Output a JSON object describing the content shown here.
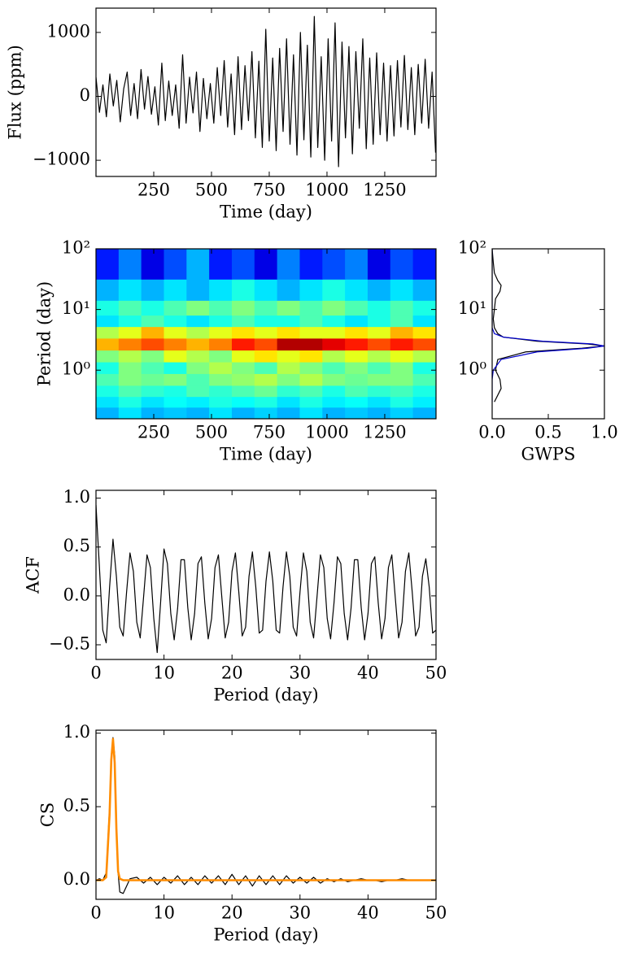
{
  "chart_data": [
    {
      "type": "line",
      "xlabel": "Time (day)",
      "ylabel": "Flux (ppm)",
      "xlim": [
        0,
        1472
      ],
      "xticks": [
        250,
        500,
        750,
        1000,
        1250
      ],
      "ylim": [
        -1253,
        1380
      ],
      "yticks": [
        {
          "value": -1000,
          "label": "−1000"
        },
        0,
        1000
      ],
      "x": [
        0,
        15,
        30,
        45,
        60,
        75,
        90,
        105,
        120,
        135,
        150,
        165,
        180,
        195,
        210,
        225,
        240,
        255,
        270,
        285,
        300,
        315,
        330,
        345,
        360,
        375,
        390,
        405,
        420,
        435,
        450,
        465,
        480,
        495,
        510,
        525,
        540,
        555,
        570,
        585,
        600,
        615,
        630,
        645,
        660,
        675,
        690,
        705,
        720,
        735,
        750,
        765,
        780,
        795,
        810,
        825,
        840,
        855,
        870,
        885,
        900,
        915,
        930,
        945,
        960,
        975,
        990,
        1005,
        1020,
        1035,
        1050,
        1065,
        1080,
        1095,
        1110,
        1125,
        1140,
        1155,
        1170,
        1185,
        1200,
        1215,
        1230,
        1245,
        1260,
        1275,
        1290,
        1305,
        1320,
        1335,
        1350,
        1365,
        1380,
        1395,
        1410,
        1425,
        1440,
        1455,
        1470
      ],
      "series": [
        {
          "color": "#000000",
          "linewidth": 1.2,
          "values": [
            300,
            -250,
            180,
            -320,
            350,
            -150,
            250,
            -400,
            120,
            380,
            -300,
            200,
            -350,
            420,
            -200,
            310,
            -280,
            150,
            -450,
            520,
            -380,
            240,
            -300,
            180,
            -500,
            650,
            -420,
            300,
            -260,
            380,
            -550,
            280,
            -350,
            200,
            -420,
            450,
            -300,
            560,
            -480,
            350,
            -600,
            620,
            -520,
            480,
            -380,
            700,
            -650,
            550,
            -800,
            1050,
            -700,
            600,
            -850,
            750,
            -550,
            900,
            -750,
            650,
            -920,
            1000,
            -680,
            800,
            -950,
            1250,
            -800,
            620,
            -1000,
            900,
            -700,
            1150,
            -1100,
            850,
            -650,
            780,
            -900,
            700,
            -500,
            900,
            -820,
            600,
            -750,
            680,
            -600,
            520,
            -700,
            480,
            -620,
            560,
            -480,
            640,
            -520,
            450,
            -600,
            500,
            -420,
            580,
            -500,
            380,
            -880
          ]
        }
      ]
    },
    {
      "type": "heatmap",
      "xlabel": "Time (day)",
      "ylabel": "Period (day)",
      "colormap": "jet",
      "ylog": true,
      "xlim": [
        0,
        1472
      ],
      "xticks": [
        250,
        500,
        750,
        1000,
        1250
      ],
      "ylim": [
        0.158,
        100
      ],
      "yticks": [
        {
          "value": 1,
          "label": "10⁰"
        },
        {
          "value": 10,
          "label": "10¹"
        },
        {
          "value": 100,
          "label": "10²"
        }
      ],
      "x": [
        49,
        147,
        245,
        343,
        441,
        539,
        637,
        735,
        833,
        931,
        1029,
        1127,
        1225,
        1323,
        1421
      ],
      "y": [
        0.2,
        0.3,
        0.45,
        0.7,
        1.1,
        1.7,
        2.7,
        4.2,
        6.5,
        10,
        20,
        50
      ],
      "z": [
        [
          0.3,
          0.35,
          0.3,
          0.32,
          0.3,
          0.35,
          0.3,
          0.33,
          0.3,
          0.35,
          0.3,
          0.32,
          0.3,
          0.33,
          0.3
        ],
        [
          0.35,
          0.4,
          0.35,
          0.38,
          0.36,
          0.4,
          0.38,
          0.4,
          0.35,
          0.4,
          0.36,
          0.38,
          0.35,
          0.4,
          0.36
        ],
        [
          0.4,
          0.45,
          0.42,
          0.4,
          0.45,
          0.42,
          0.45,
          0.48,
          0.42,
          0.45,
          0.4,
          0.45,
          0.42,
          0.44,
          0.4
        ],
        [
          0.45,
          0.5,
          0.48,
          0.5,
          0.45,
          0.5,
          0.52,
          0.55,
          0.5,
          0.55,
          0.5,
          0.48,
          0.5,
          0.5,
          0.45
        ],
        [
          0.4,
          0.5,
          0.45,
          0.4,
          0.5,
          0.55,
          0.5,
          0.45,
          0.55,
          0.5,
          0.45,
          0.5,
          0.45,
          0.5,
          0.4
        ],
        [
          0.5,
          0.55,
          0.5,
          0.6,
          0.55,
          0.5,
          0.6,
          0.65,
          0.6,
          0.65,
          0.55,
          0.6,
          0.55,
          0.6,
          0.55
        ],
        [
          0.7,
          0.75,
          0.8,
          0.75,
          0.7,
          0.75,
          0.85,
          0.8,
          0.95,
          0.95,
          0.9,
          0.85,
          0.8,
          0.85,
          0.8
        ],
        [
          0.55,
          0.6,
          0.7,
          0.6,
          0.55,
          0.6,
          0.65,
          0.6,
          0.65,
          0.6,
          0.6,
          0.65,
          0.6,
          0.7,
          0.65
        ],
        [
          0.35,
          0.4,
          0.45,
          0.4,
          0.35,
          0.4,
          0.45,
          0.4,
          0.4,
          0.45,
          0.4,
          0.35,
          0.4,
          0.45,
          0.35
        ],
        [
          0.4,
          0.45,
          0.4,
          0.45,
          0.5,
          0.45,
          0.5,
          0.45,
          0.5,
          0.45,
          0.5,
          0.45,
          0.4,
          0.45,
          0.4
        ],
        [
          0.3,
          0.35,
          0.3,
          0.35,
          0.3,
          0.35,
          0.4,
          0.35,
          0.3,
          0.35,
          0.4,
          0.35,
          0.3,
          0.35,
          0.3
        ],
        [
          0.15,
          0.25,
          0.1,
          0.2,
          0.3,
          0.15,
          0.2,
          0.1,
          0.25,
          0.15,
          0.2,
          0.25,
          0.1,
          0.2,
          0.15
        ]
      ]
    },
    {
      "type": "line",
      "orientation": "horizontal",
      "xlabel": "GWPS",
      "ylog": true,
      "xlim": [
        0,
        1
      ],
      "xticks": [
        {
          "value": 0,
          "label": "0.0"
        },
        {
          "value": 0.5,
          "label": "0.5"
        },
        {
          "value": 1,
          "label": "1.0"
        }
      ],
      "ylim": [
        0.158,
        100
      ],
      "yticks": [
        {
          "value": 1,
          "label": "10⁰"
        },
        {
          "value": 10,
          "label": "10¹"
        },
        {
          "value": 100,
          "label": "10²"
        }
      ],
      "y": [
        0.3,
        0.5,
        0.7,
        1,
        1.5,
        2,
        2.3,
        2.5,
        2.7,
        3,
        3.5,
        4,
        5,
        7,
        10,
        15,
        20,
        25,
        30,
        40,
        60,
        100
      ],
      "series": [
        {
          "color": "#000000",
          "linewidth": 1.2,
          "values": [
            0.02,
            0.08,
            0.07,
            0.03,
            0.05,
            0.3,
            0.8,
            1.0,
            0.85,
            0.4,
            0.1,
            0.05,
            0.02,
            0.01,
            0.02,
            0.03,
            0.07,
            0.08,
            0.05,
            0.02,
            0.01,
            0
          ]
        },
        {
          "color": "#0000cc",
          "linewidth": 1.2,
          "values": [
            0,
            0,
            0,
            0.01,
            0.08,
            0.4,
            0.85,
            1.0,
            0.9,
            0.45,
            0.1,
            0.02,
            0,
            0,
            0,
            0,
            0,
            0,
            0,
            0,
            0,
            0
          ]
        }
      ]
    },
    {
      "type": "line",
      "xlabel": "Period (day)",
      "ylabel": "ACF",
      "xlim": [
        0,
        50
      ],
      "xticks": [
        0,
        10,
        20,
        30,
        40,
        50
      ],
      "ylim": [
        -0.65,
        1.08
      ],
      "yticks": [
        {
          "value": -0.5,
          "label": "−0.5"
        },
        {
          "value": 0,
          "label": "0.0"
        },
        {
          "value": 0.5,
          "label": "0.5"
        },
        {
          "value": 1,
          "label": "1.0"
        }
      ],
      "x": [
        0,
        0.5,
        1,
        1.5,
        2,
        2.5,
        3,
        3.5,
        4,
        4.5,
        5,
        5.5,
        6,
        6.5,
        7,
        7.5,
        8,
        8.5,
        9,
        9.5,
        10,
        10.5,
        11,
        11.5,
        12,
        12.5,
        13,
        13.5,
        14,
        14.5,
        15,
        15.5,
        16,
        16.5,
        17,
        17.5,
        18,
        18.5,
        19,
        19.5,
        20,
        20.5,
        21,
        21.5,
        22,
        22.5,
        23,
        23.5,
        24,
        24.5,
        25,
        25.5,
        26,
        26.5,
        27,
        27.5,
        28,
        28.5,
        29,
        29.5,
        30,
        30.5,
        31,
        31.5,
        32,
        32.5,
        33,
        33.5,
        34,
        34.5,
        35,
        35.5,
        36,
        36.5,
        37,
        37.5,
        38,
        38.5,
        39,
        39.5,
        40,
        40.5,
        41,
        41.5,
        42,
        42.5,
        43,
        43.5,
        44,
        44.5,
        45,
        45.5,
        46,
        46.5,
        47,
        47.5,
        48,
        48.5,
        49,
        49.5,
        50
      ],
      "series": [
        {
          "color": "#000000",
          "linewidth": 1.2,
          "values": [
            0.93,
            0.3,
            -0.35,
            -0.48,
            0.09,
            0.58,
            0.2,
            -0.32,
            -0.41,
            0.04,
            0.44,
            0.25,
            -0.27,
            -0.43,
            -0.01,
            0.42,
            0.29,
            -0.23,
            -0.58,
            -0.07,
            0.48,
            0.33,
            -0.18,
            -0.45,
            -0.13,
            0.37,
            0.37,
            -0.12,
            -0.45,
            -0.18,
            0.33,
            0.4,
            -0.07,
            -0.44,
            -0.23,
            0.29,
            0.42,
            -0.01,
            -0.43,
            -0.27,
            0.25,
            0.44,
            0.04,
            -0.41,
            -0.32,
            0.2,
            0.45,
            0.09,
            -0.38,
            -0.35,
            0.15,
            0.45,
            0.15,
            -0.35,
            -0.38,
            0.09,
            0.45,
            0.2,
            -0.32,
            -0.41,
            0.04,
            0.44,
            0.25,
            -0.27,
            -0.43,
            -0.01,
            0.42,
            0.29,
            -0.23,
            -0.44,
            -0.07,
            0.4,
            0.33,
            -0.18,
            -0.45,
            -0.13,
            0.37,
            0.37,
            -0.12,
            -0.45,
            -0.18,
            0.33,
            0.4,
            -0.07,
            -0.44,
            -0.23,
            0.29,
            0.42,
            -0.01,
            -0.43,
            -0.27,
            0.25,
            0.44,
            0.04,
            -0.41,
            -0.32,
            0.2,
            0.38,
            0.09,
            -0.38,
            -0.35
          ]
        }
      ]
    },
    {
      "type": "line",
      "xlabel": "Period (day)",
      "ylabel": "CS",
      "xlim": [
        0,
        50
      ],
      "xticks": [
        0,
        10,
        20,
        30,
        40,
        50
      ],
      "ylim": [
        -0.13,
        1.02
      ],
      "yticks": [
        {
          "value": 0,
          "label": "0.0"
        },
        {
          "value": 0.5,
          "label": "0.5"
        },
        {
          "value": 1,
          "label": "1.0"
        }
      ],
      "x": [
        0,
        0.5,
        1,
        1.5,
        2,
        2.25,
        2.5,
        2.75,
        3,
        3.25,
        3.5,
        4,
        4.5,
        5,
        6,
        7,
        8,
        9,
        10,
        11,
        12,
        13,
        14,
        15,
        16,
        17,
        18,
        19,
        20,
        21,
        22,
        23,
        24,
        25,
        26,
        27,
        28,
        29,
        30,
        31,
        32,
        33,
        34,
        35,
        36,
        37,
        38,
        39,
        40,
        41,
        42,
        43,
        44,
        45,
        46,
        47,
        48,
        49,
        50
      ],
      "series": [
        {
          "color": "#000000",
          "linewidth": 1.2,
          "values": [
            0,
            0.01,
            0,
            0.05,
            0.5,
            0.85,
            0.97,
            0.85,
            0.4,
            0.05,
            -0.08,
            -0.09,
            -0.04,
            0.01,
            0.02,
            -0.02,
            0.02,
            -0.03,
            0.02,
            -0.02,
            0.03,
            -0.03,
            0.02,
            -0.03,
            0.03,
            -0.02,
            0.03,
            -0.03,
            0.04,
            -0.03,
            0.03,
            -0.04,
            0.03,
            -0.03,
            0.03,
            -0.03,
            0.03,
            -0.02,
            0.02,
            -0.02,
            0.02,
            -0.02,
            0.01,
            -0.01,
            0.01,
            -0.01,
            0,
            0.01,
            0,
            0,
            -0.01,
            0,
            0,
            0.01,
            0,
            0,
            0,
            0,
            0
          ]
        },
        {
          "color": "#ff8c00",
          "linewidth": 2.6,
          "values": [
            0,
            0,
            0,
            0.02,
            0.45,
            0.82,
            0.96,
            0.8,
            0.35,
            0.06,
            0.01,
            0,
            0,
            0,
            0,
            0,
            0,
            0,
            0,
            0,
            0,
            0,
            0,
            0,
            0,
            0,
            0,
            0,
            0,
            0,
            0,
            0,
            0,
            0,
            0,
            0,
            0,
            0,
            0,
            0,
            0,
            0,
            0,
            0,
            0,
            0,
            0,
            0,
            0,
            0,
            0,
            0,
            0,
            0,
            0,
            0,
            0,
            0,
            0
          ]
        }
      ]
    }
  ]
}
